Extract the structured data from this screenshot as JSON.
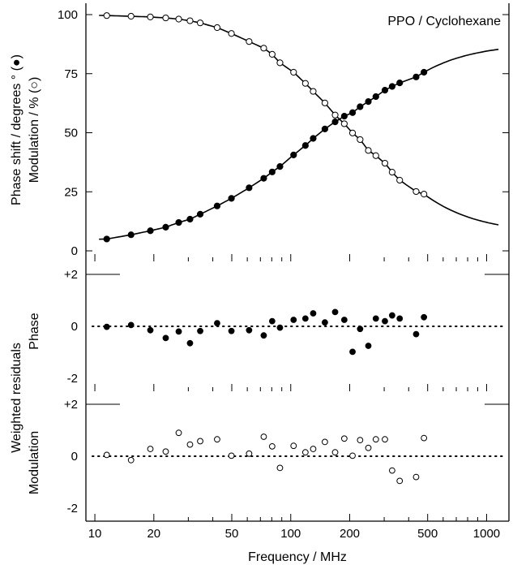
{
  "chart_data": [
    {
      "type": "line",
      "title": "PPO / Cyclohexane",
      "ylabel_line1": "Phase shift / degrees ° (●)",
      "ylabel_line2": "Modulation / % (○)",
      "xscale": "log",
      "xlim": [
        9,
        1300
      ],
      "ylim": [
        0,
        100
      ],
      "yticks": [
        0,
        25,
        50,
        75,
        100
      ],
      "legend": "none",
      "series": [
        {
          "marker": "filled-circle",
          "x": [
            11.5,
            15.3,
            19.2,
            23.0,
            26.8,
            30.6,
            34.5,
            42.1,
            49.8,
            61.3,
            72.8,
            80.4,
            88.1,
            103.4,
            118.8,
            130.2,
            149.4,
            168.5,
            187.7,
            206.8,
            226.0,
            249.0,
            272.0,
            302.6,
            329.4,
            360.0,
            436.6,
            478.8
          ],
          "y": [
            5.0,
            6.8,
            8.5,
            10.0,
            12.0,
            13.4,
            15.5,
            19.0,
            22.2,
            26.7,
            30.7,
            33.4,
            35.7,
            40.6,
            44.6,
            47.6,
            51.6,
            54.6,
            57.0,
            58.5,
            61.0,
            63.2,
            65.3,
            68.0,
            69.6,
            71.1,
            73.6,
            75.6
          ]
        },
        {
          "marker": "open-circle",
          "x": [
            11.5,
            15.3,
            19.2,
            23.0,
            26.8,
            30.6,
            34.5,
            42.1,
            49.8,
            61.3,
            72.8,
            80.4,
            88.1,
            103.4,
            118.8,
            130.2,
            149.4,
            168.5,
            187.7,
            206.8,
            226.0,
            249.0,
            272.0,
            302.6,
            329.4,
            360.0,
            436.6,
            478.8
          ],
          "y": [
            99.6,
            99.3,
            99.0,
            98.6,
            98.1,
            97.4,
            96.5,
            94.5,
            92.0,
            88.6,
            85.8,
            83.2,
            79.6,
            75.6,
            70.9,
            67.5,
            62.6,
            57.5,
            53.8,
            49.9,
            47.1,
            42.5,
            40.3,
            37.1,
            33.3,
            29.9,
            25.1,
            24.0
          ]
        }
      ],
      "fit_curves": true
    },
    {
      "type": "scatter",
      "ylabel": "Phase",
      "marker": "filled-circle",
      "xscale": "log",
      "ylim": [
        -2,
        2
      ],
      "ytick_labels": [
        "+2",
        "0",
        "-2"
      ],
      "zero_line": "dotted",
      "x": [
        11.5,
        15.3,
        19.2,
        23.0,
        26.8,
        30.6,
        34.5,
        42.1,
        49.8,
        61.3,
        72.8,
        80.4,
        88.1,
        103.4,
        118.8,
        130.2,
        149.4,
        168.5,
        187.7,
        206.8,
        226.0,
        249.0,
        272.0,
        302.6,
        329.4,
        360.0,
        436.6,
        478.8
      ],
      "y": [
        -0.02,
        0.05,
        -0.15,
        -0.45,
        -0.2,
        -0.65,
        -0.18,
        0.12,
        -0.18,
        -0.15,
        -0.35,
        0.2,
        -0.05,
        0.25,
        0.3,
        0.5,
        0.15,
        0.55,
        0.25,
        -0.98,
        -0.1,
        -0.75,
        0.3,
        0.2,
        0.42,
        0.3,
        -0.3,
        0.35
      ]
    },
    {
      "type": "scatter",
      "ylabel": "Modulation",
      "marker": "open-circle",
      "xscale": "log",
      "ylim": [
        -2,
        2
      ],
      "ytick_labels": [
        "+2",
        "0",
        "-2"
      ],
      "zero_line": "dotted",
      "x": [
        11.5,
        15.3,
        19.2,
        23.0,
        26.8,
        30.6,
        34.5,
        42.1,
        49.8,
        61.3,
        72.8,
        80.4,
        88.1,
        103.4,
        118.8,
        130.2,
        149.4,
        168.5,
        187.7,
        206.8,
        226.0,
        249.0,
        272.0,
        302.6,
        329.4,
        360.0,
        436.6,
        478.8
      ],
      "y": [
        0.05,
        -0.15,
        0.28,
        0.18,
        0.9,
        0.45,
        0.58,
        0.65,
        0.02,
        0.1,
        0.75,
        0.38,
        -0.45,
        0.4,
        0.15,
        0.28,
        0.55,
        0.15,
        0.68,
        0.02,
        0.62,
        0.32,
        0.65,
        0.65,
        -0.55,
        -0.95,
        -0.8,
        0.7
      ]
    }
  ],
  "shared_axis": {
    "xlabel": "Frequency / MHz",
    "xticks": [
      10,
      20,
      50,
      100,
      200,
      500,
      1000
    ],
    "xtick_labels": [
      "10",
      "20",
      "50",
      "100",
      "200",
      "500",
      "1000"
    ],
    "residuals_label": "Weighted residuals"
  }
}
